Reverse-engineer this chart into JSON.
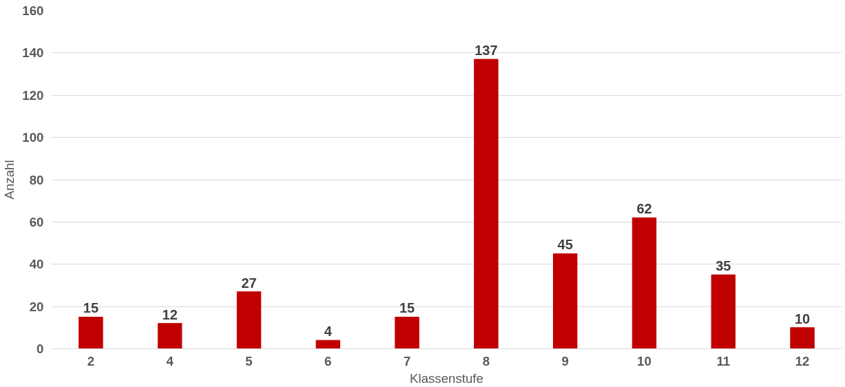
{
  "chart_data": {
    "type": "bar",
    "xlabel": "Klassenstufe",
    "ylabel": "Anzahl",
    "categories": [
      "2",
      "4",
      "5",
      "6",
      "7",
      "8",
      "9",
      "10",
      "11",
      "12"
    ],
    "values": [
      15,
      12,
      27,
      4,
      15,
      137,
      45,
      62,
      35,
      10
    ],
    "color": "#c00000",
    "ylim": [
      0,
      160
    ],
    "yticks": [
      0,
      20,
      40,
      60,
      80,
      100,
      120,
      140,
      160
    ],
    "grid": "y",
    "data_labels": true
  }
}
